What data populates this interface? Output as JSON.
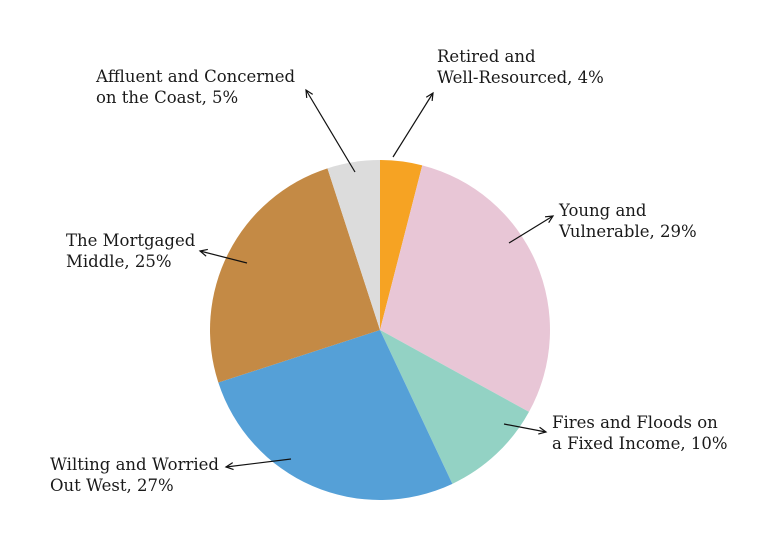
{
  "chart_data": {
    "type": "pie",
    "title": "",
    "slices": [
      {
        "name": "Retired and Well-Resourced",
        "value": 4,
        "color": "#F6A323",
        "label_lines": [
          "Retired and",
          "Well-Resourced, 4%"
        ]
      },
      {
        "name": "Young and Vulnerable",
        "value": 29,
        "color": "#E8C6D6",
        "label_lines": [
          "Young and",
          "Vulnerable, 29%"
        ]
      },
      {
        "name": "Fires and Floods on a Fixed Income",
        "value": 10,
        "color": "#93D2C4",
        "label_lines": [
          "Fires and Floods on",
          "a Fixed Income, 10%"
        ]
      },
      {
        "name": "Wilting and Worried Out West",
        "value": 27,
        "color": "#55A0D7",
        "label_lines": [
          "Wilting and Worried",
          "Out West, 27%"
        ]
      },
      {
        "name": "The Mortgaged Middle",
        "value": 25,
        "color": "#C48A45",
        "label_lines": [
          "The Mortgaged",
          "Middle, 25%"
        ]
      },
      {
        "name": "Affluent and Concerned on the Coast",
        "value": 5,
        "color": "#DCDCDC",
        "label_lines": [
          "Affluent and Concerned",
          "on the Coast, 5%"
        ]
      }
    ],
    "start": "top",
    "direction": "clockwise",
    "legend": "none"
  }
}
